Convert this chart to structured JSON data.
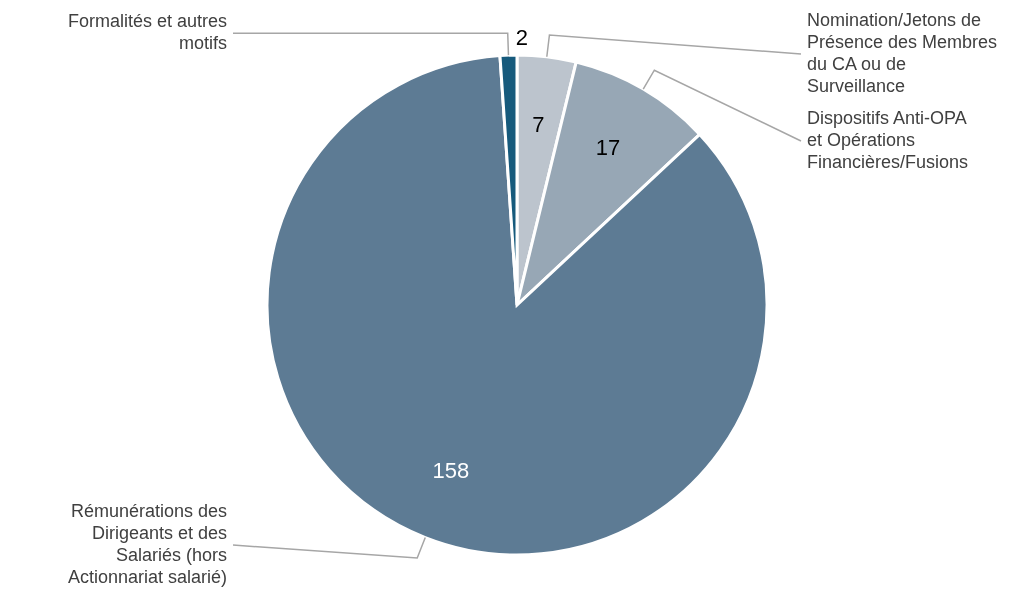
{
  "chart_data": {
    "type": "pie",
    "categories": [
      "Nomination/Jetons de Présence des Membres du CA ou de Surveillance",
      "Dispositifs Anti-OPA et Opérations Financières/Fusions",
      "Rémunérations des Dirigeants et des Salariés (hors Actionnariat salarié)",
      "Formalités et autres motifs"
    ],
    "values": [
      7,
      17,
      158,
      2
    ],
    "colors": [
      "#bcc4cd",
      "#97a7b5",
      "#5d7b94",
      "#165a7c"
    ],
    "data_labels": true
  }
}
